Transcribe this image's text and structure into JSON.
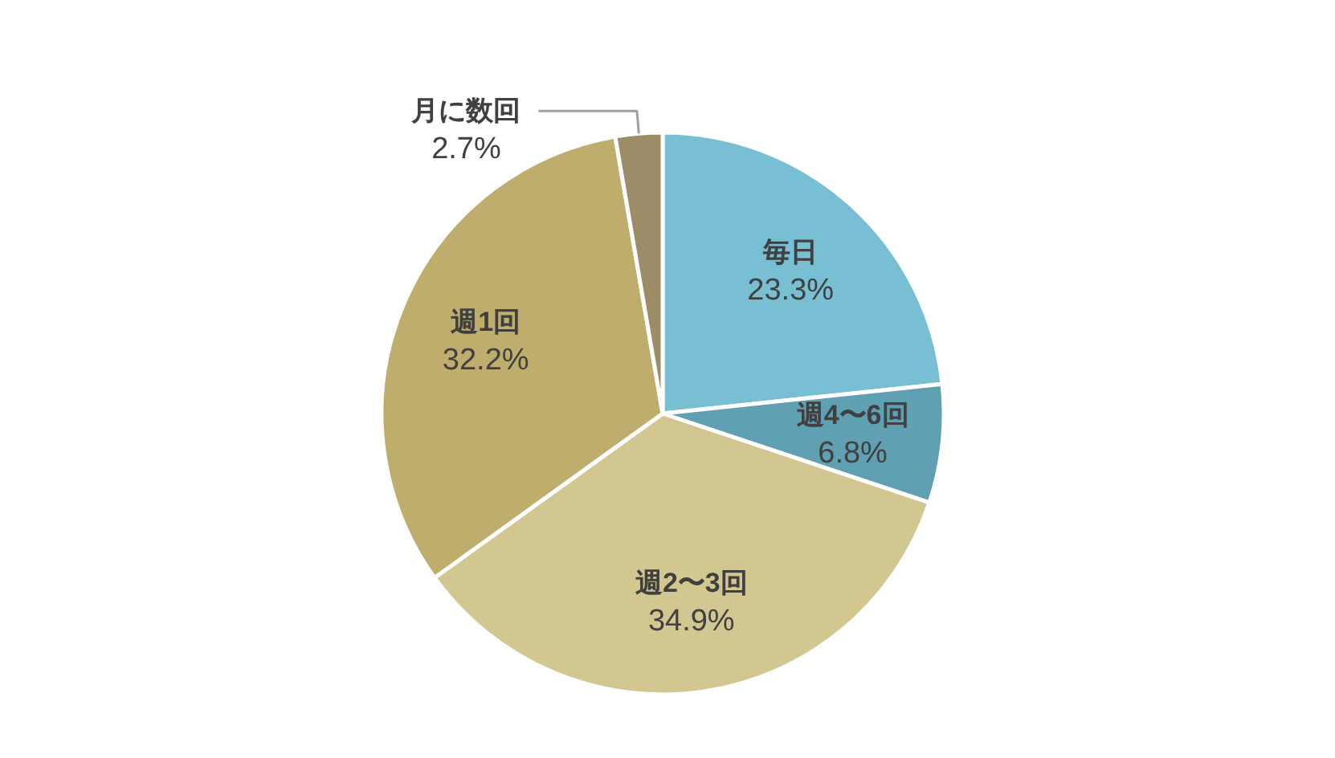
{
  "chart_data": {
    "type": "pie",
    "categories": [
      "毎日",
      "週4〜6回",
      "週2〜3回",
      "週1回",
      "月に数回"
    ],
    "values": [
      23.3,
      6.8,
      34.9,
      32.2,
      2.7
    ],
    "colors": [
      "#78bfd4",
      "#5fa0b3",
      "#d2c691",
      "#bfad6d",
      "#9c8c68"
    ],
    "value_labels": [
      "23.3%",
      "6.8%",
      "34.9%",
      "32.2%",
      "2.7%"
    ]
  }
}
